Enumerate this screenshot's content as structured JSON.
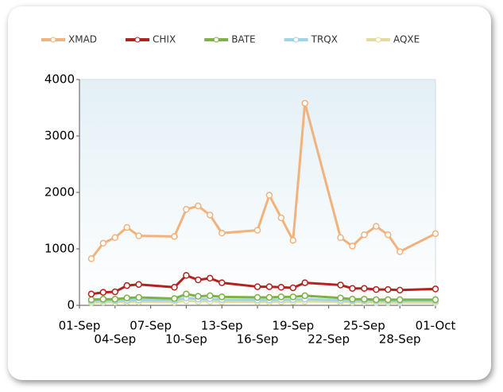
{
  "chart_data": {
    "type": "line",
    "x": [
      "02-Sep",
      "03-Sep",
      "04-Sep",
      "05-Sep",
      "06-Sep",
      "09-Sep",
      "10-Sep",
      "11-Sep",
      "12-Sep",
      "13-Sep",
      "16-Sep",
      "17-Sep",
      "18-Sep",
      "19-Sep",
      "20-Sep",
      "23-Sep",
      "24-Sep",
      "25-Sep",
      "26-Sep",
      "27-Sep",
      "28-Sep",
      "01-Oct"
    ],
    "series": [
      {
        "name": "XMAD",
        "color": "#f2b27c",
        "values": [
          825,
          1100,
          1200,
          1380,
          1230,
          1220,
          1700,
          1760,
          1600,
          1280,
          1330,
          1950,
          1550,
          1150,
          3580,
          1200,
          1050,
          1250,
          1400,
          1250,
          950,
          1270
        ]
      },
      {
        "name": "CHIX",
        "color": "#b3221e",
        "values": [
          200,
          230,
          240,
          350,
          370,
          320,
          530,
          450,
          480,
          400,
          330,
          330,
          320,
          310,
          400,
          360,
          300,
          300,
          280,
          280,
          270,
          290
        ]
      },
      {
        "name": "BATE",
        "color": "#7cb342",
        "values": [
          100,
          110,
          110,
          130,
          140,
          120,
          200,
          160,
          170,
          150,
          140,
          140,
          150,
          150,
          170,
          130,
          110,
          110,
          100,
          100,
          100,
          100
        ]
      },
      {
        "name": "TRQX",
        "color": "#9fd3e6",
        "values": [
          80,
          85,
          85,
          90,
          95,
          90,
          130,
          110,
          115,
          100,
          95,
          95,
          100,
          100,
          110,
          90,
          85,
          85,
          80,
          80,
          80,
          80
        ]
      },
      {
        "name": "AQXE",
        "color": "#e4dc9a",
        "values": [
          50,
          55,
          55,
          60,
          60,
          55,
          80,
          70,
          70,
          65,
          60,
          60,
          65,
          65,
          70,
          60,
          55,
          55,
          50,
          50,
          50,
          50
        ]
      }
    ],
    "xlim": [
      "01-Sep",
      "01-Oct"
    ],
    "xticks": [
      "01-Sep",
      "04-Sep",
      "07-Sep",
      "10-Sep",
      "13-Sep",
      "16-Sep",
      "19-Sep",
      "22-Sep",
      "25-Sep",
      "28-Sep",
      "01-Oct"
    ],
    "ylim": [
      0,
      4000
    ],
    "yticks": [
      0,
      1000,
      2000,
      3000,
      4000
    ],
    "legend": "top"
  }
}
